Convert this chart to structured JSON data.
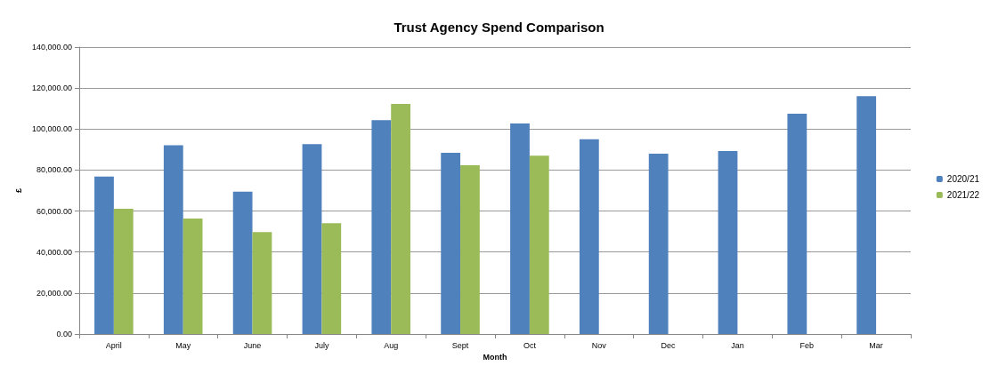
{
  "chart_data": {
    "type": "bar",
    "title": "Trust Agency Spend Comparison",
    "xlabel": "Month",
    "ylabel": "£",
    "categories": [
      "April",
      "May",
      "June",
      "July",
      "Aug",
      "Sept",
      "Oct",
      "Nov",
      "Dec",
      "Jan",
      "Feb",
      "Mar"
    ],
    "series": [
      {
        "name": "2020/21",
        "color": "#4f81bd",
        "values": [
          76800,
          92100,
          69500,
          92700,
          104300,
          88400,
          102700,
          95000,
          88000,
          89300,
          107500,
          116100
        ]
      },
      {
        "name": "2021/22",
        "color": "#9bbb59",
        "values": [
          61100,
          56300,
          49700,
          54100,
          112300,
          82400,
          87000,
          null,
          null,
          null,
          null,
          null
        ]
      }
    ],
    "ylim": [
      0,
      140000
    ],
    "yticks": [
      {
        "value": 0,
        "label": "0.00"
      },
      {
        "value": 20000,
        "label": "20,000.00"
      },
      {
        "value": 40000,
        "label": "40,000.00"
      },
      {
        "value": 60000,
        "label": "60,000.00"
      },
      {
        "value": 80000,
        "label": "80,000.00"
      },
      {
        "value": 100000,
        "label": "100,000.00"
      },
      {
        "value": 120000,
        "label": "120,000.00"
      },
      {
        "value": 140000,
        "label": "140,000.00"
      }
    ],
    "grid": "y",
    "legend": "right"
  }
}
